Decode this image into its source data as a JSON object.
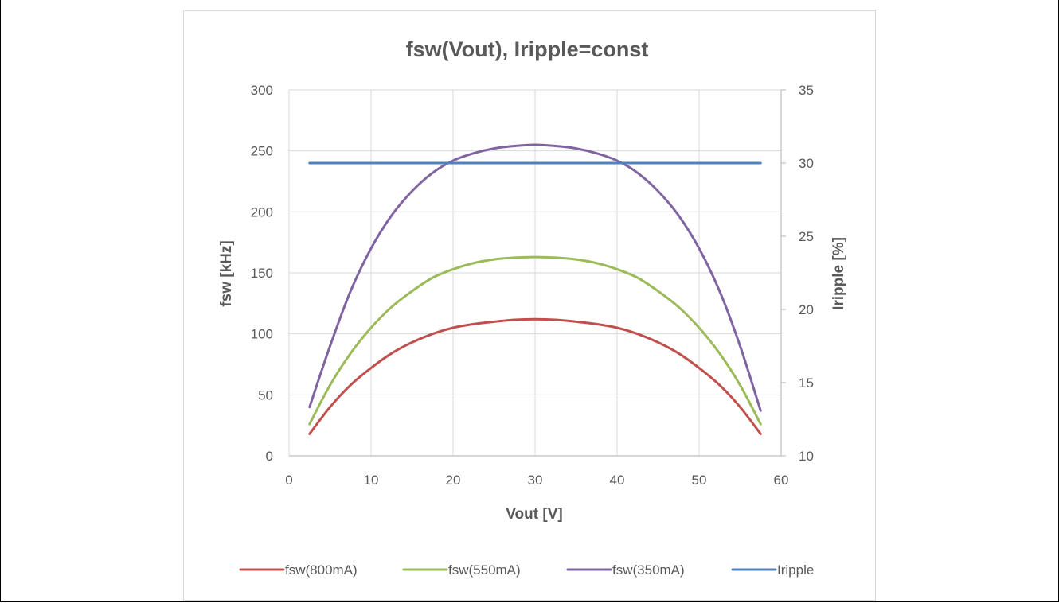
{
  "chart_data": {
    "type": "line",
    "title": "fsw(Vout), Iripple=const",
    "xlabel": "Vout [V]",
    "ylabel": "fsw [kHz]",
    "y2label": "Iripple [%]",
    "xlim": [
      0,
      60
    ],
    "ylim": [
      0,
      300
    ],
    "y2lim": [
      10,
      35
    ],
    "xticks": [
      "0",
      "10",
      "20",
      "30",
      "40",
      "50",
      "60"
    ],
    "yticks": [
      "0",
      "50",
      "100",
      "150",
      "200",
      "250",
      "300"
    ],
    "y2ticks": [
      "10",
      "15",
      "20",
      "25",
      "30",
      "35"
    ],
    "grid": true,
    "legend": "bottom",
    "x": [
      2.5,
      5,
      7.5,
      10,
      12.5,
      15,
      17.5,
      20,
      22.5,
      25,
      27.5,
      30,
      32.5,
      35,
      37.5,
      40,
      42.5,
      45,
      47.5,
      50,
      52.5,
      55,
      57.5
    ],
    "series": [
      {
        "name": "fsw(800mA)",
        "color": "#c0504d",
        "axis": "left",
        "values": [
          18,
          40,
          58,
          72,
          84,
          93,
          100,
          105,
          108,
          110,
          111.5,
          112,
          111.5,
          110,
          108,
          105,
          100,
          93,
          84,
          72,
          58,
          40,
          18
        ]
      },
      {
        "name": "fsw(550mA)",
        "color": "#9bbb59",
        "axis": "left",
        "values": [
          26,
          58,
          84,
          105,
          122,
          135,
          146,
          153,
          158,
          161,
          162.5,
          163,
          162.5,
          161,
          158,
          153,
          146,
          135,
          122,
          105,
          84,
          58,
          26
        ]
      },
      {
        "name": "fsw(350mA)",
        "color": "#8064a2",
        "axis": "left",
        "values": [
          40,
          90,
          135,
          170,
          197,
          217,
          232,
          242,
          248,
          252,
          254,
          255,
          254,
          252,
          248,
          242,
          232,
          217,
          197,
          170,
          135,
          90,
          37
        ]
      },
      {
        "name": "Iripple",
        "color": "#4f81bd",
        "axis": "right",
        "values": [
          30,
          30,
          30,
          30,
          30,
          30,
          30,
          30,
          30,
          30,
          30,
          30,
          30,
          30,
          30,
          30,
          30,
          30,
          30,
          30,
          30,
          30,
          30
        ]
      }
    ]
  }
}
